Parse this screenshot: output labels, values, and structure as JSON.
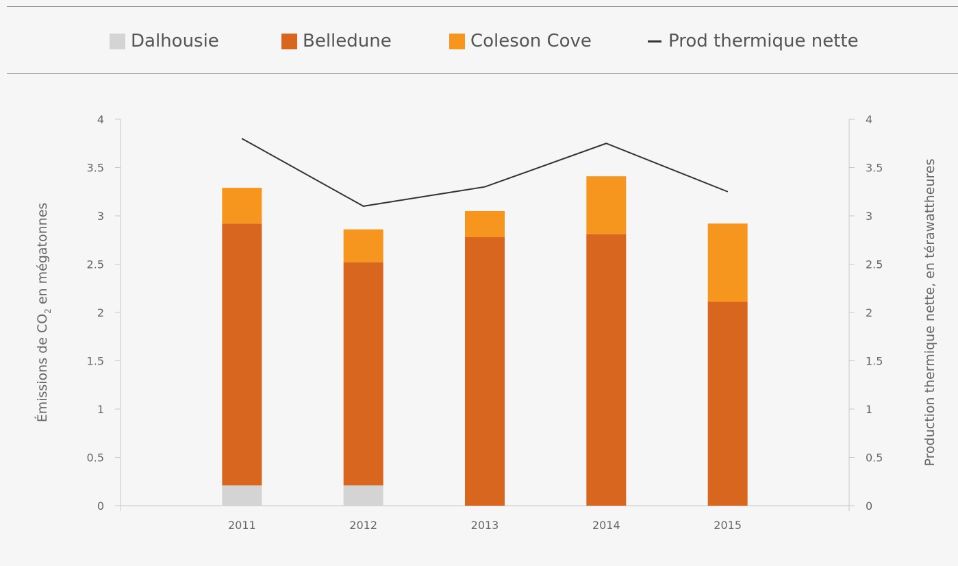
{
  "legend": {
    "dalhousie": "Dalhousie",
    "belledune": "Belledune",
    "coleson": "Coleson Cove",
    "line": "Prod thermique nette"
  },
  "colors": {
    "dalhousie": "#d4d4d4",
    "belledune": "#d9661f",
    "coleson": "#f7961e",
    "line": "#333333",
    "axis": "#c8c8c8"
  },
  "chart_data": {
    "type": "bar",
    "stacked": true,
    "categories": [
      "2011",
      "2012",
      "2013",
      "2014",
      "2015"
    ],
    "series": [
      {
        "name": "Dalhousie",
        "values": [
          0.21,
          0.21,
          0,
          0,
          0
        ]
      },
      {
        "name": "Belledune",
        "values": [
          2.71,
          2.31,
          2.78,
          2.81,
          2.11
        ]
      },
      {
        "name": "Coleson Cove",
        "values": [
          0.37,
          0.34,
          0.27,
          0.6,
          0.81
        ]
      }
    ],
    "line_series": {
      "name": "Prod thermique nette",
      "axis": "right",
      "values": [
        3.8,
        3.1,
        3.3,
        3.75,
        3.25
      ]
    },
    "ylim": [
      0,
      4
    ],
    "y2lim": [
      0,
      4
    ],
    "yticks": [
      "0",
      "0.5",
      "1",
      "1.5",
      "2",
      "2.5",
      "3",
      "3.5",
      "4"
    ],
    "ylabel_pre": "Émissions de CO",
    "ylabel_sub": "2",
    "ylabel_post": " en mégatonnes",
    "y2label": "Production thermique nette, en térawattheures"
  }
}
